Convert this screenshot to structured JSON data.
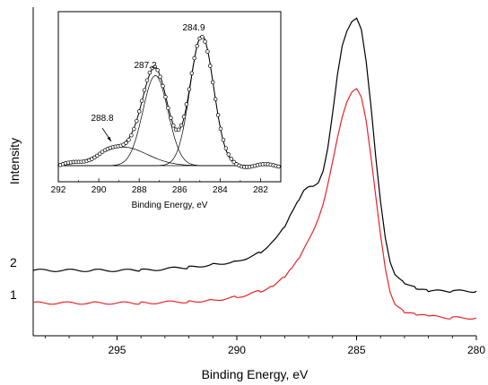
{
  "chart_data": [
    {
      "type": "line",
      "title": "",
      "xlabel": "Binding Energy, eV",
      "ylabel": "Intensity",
      "xlim": [
        298.5,
        280
      ],
      "x_reversed": true,
      "xticks": [
        295,
        290,
        285,
        280
      ],
      "y_ticks_shown": false,
      "series": [
        {
          "name": "2",
          "color": "#000000",
          "x": [
            298.5,
            296,
            294,
            292,
            291,
            290,
            289,
            288.5,
            288,
            287.7,
            287.4,
            287.2,
            287.0,
            286.8,
            286.6,
            286.4,
            286.2,
            286.0,
            285.8,
            285.6,
            285.4,
            285.2,
            285.0,
            284.8,
            284.6,
            284.4,
            284.2,
            284.0,
            283.8,
            283.6,
            283.4,
            283.0,
            282.5,
            282,
            281,
            280
          ],
          "y": [
            0.19,
            0.19,
            0.19,
            0.2,
            0.21,
            0.22,
            0.25,
            0.29,
            0.34,
            0.39,
            0.43,
            0.46,
            0.47,
            0.47,
            0.48,
            0.52,
            0.6,
            0.72,
            0.85,
            0.95,
            1.0,
            1.03,
            1.04,
            1.0,
            0.89,
            0.74,
            0.57,
            0.42,
            0.3,
            0.22,
            0.18,
            0.15,
            0.13,
            0.12,
            0.12,
            0.12
          ]
        },
        {
          "name": "1",
          "color": "#e8232a",
          "x": [
            298.5,
            296,
            294,
            292,
            291,
            290,
            289,
            288.5,
            288,
            287.7,
            287.4,
            287.2,
            287.0,
            286.8,
            286.6,
            286.4,
            286.2,
            286.0,
            285.8,
            285.6,
            285.4,
            285.2,
            285.0,
            284.8,
            284.6,
            284.4,
            284.2,
            284.0,
            283.8,
            283.6,
            283.4,
            283.0,
            282.5,
            282,
            281,
            280
          ],
          "y": [
            0.08,
            0.08,
            0.08,
            0.085,
            0.09,
            0.1,
            0.12,
            0.14,
            0.17,
            0.2,
            0.23,
            0.26,
            0.29,
            0.32,
            0.36,
            0.41,
            0.48,
            0.56,
            0.64,
            0.71,
            0.76,
            0.79,
            0.8,
            0.77,
            0.69,
            0.57,
            0.44,
            0.31,
            0.2,
            0.12,
            0.08,
            0.05,
            0.04,
            0.035,
            0.03,
            0.03
          ]
        }
      ],
      "curve_labels": [
        "2",
        "1"
      ]
    },
    {
      "type": "scatter",
      "title": "",
      "xlabel": "Binding Energy, eV",
      "ylabel": "",
      "xlim": [
        292,
        281
      ],
      "x_reversed": true,
      "xticks": [
        292,
        290,
        288,
        286,
        284,
        282
      ],
      "peaks": [
        {
          "label": "288.8",
          "center": 288.8,
          "height": 0.14,
          "width": 1.2
        },
        {
          "label": "287.2",
          "center": 287.2,
          "height": 0.68,
          "width": 0.62
        },
        {
          "label": "284.9",
          "center": 284.9,
          "height": 0.98,
          "width": 0.58
        }
      ],
      "annotations": [
        "288.8",
        "287.2",
        "284.9"
      ]
    }
  ]
}
